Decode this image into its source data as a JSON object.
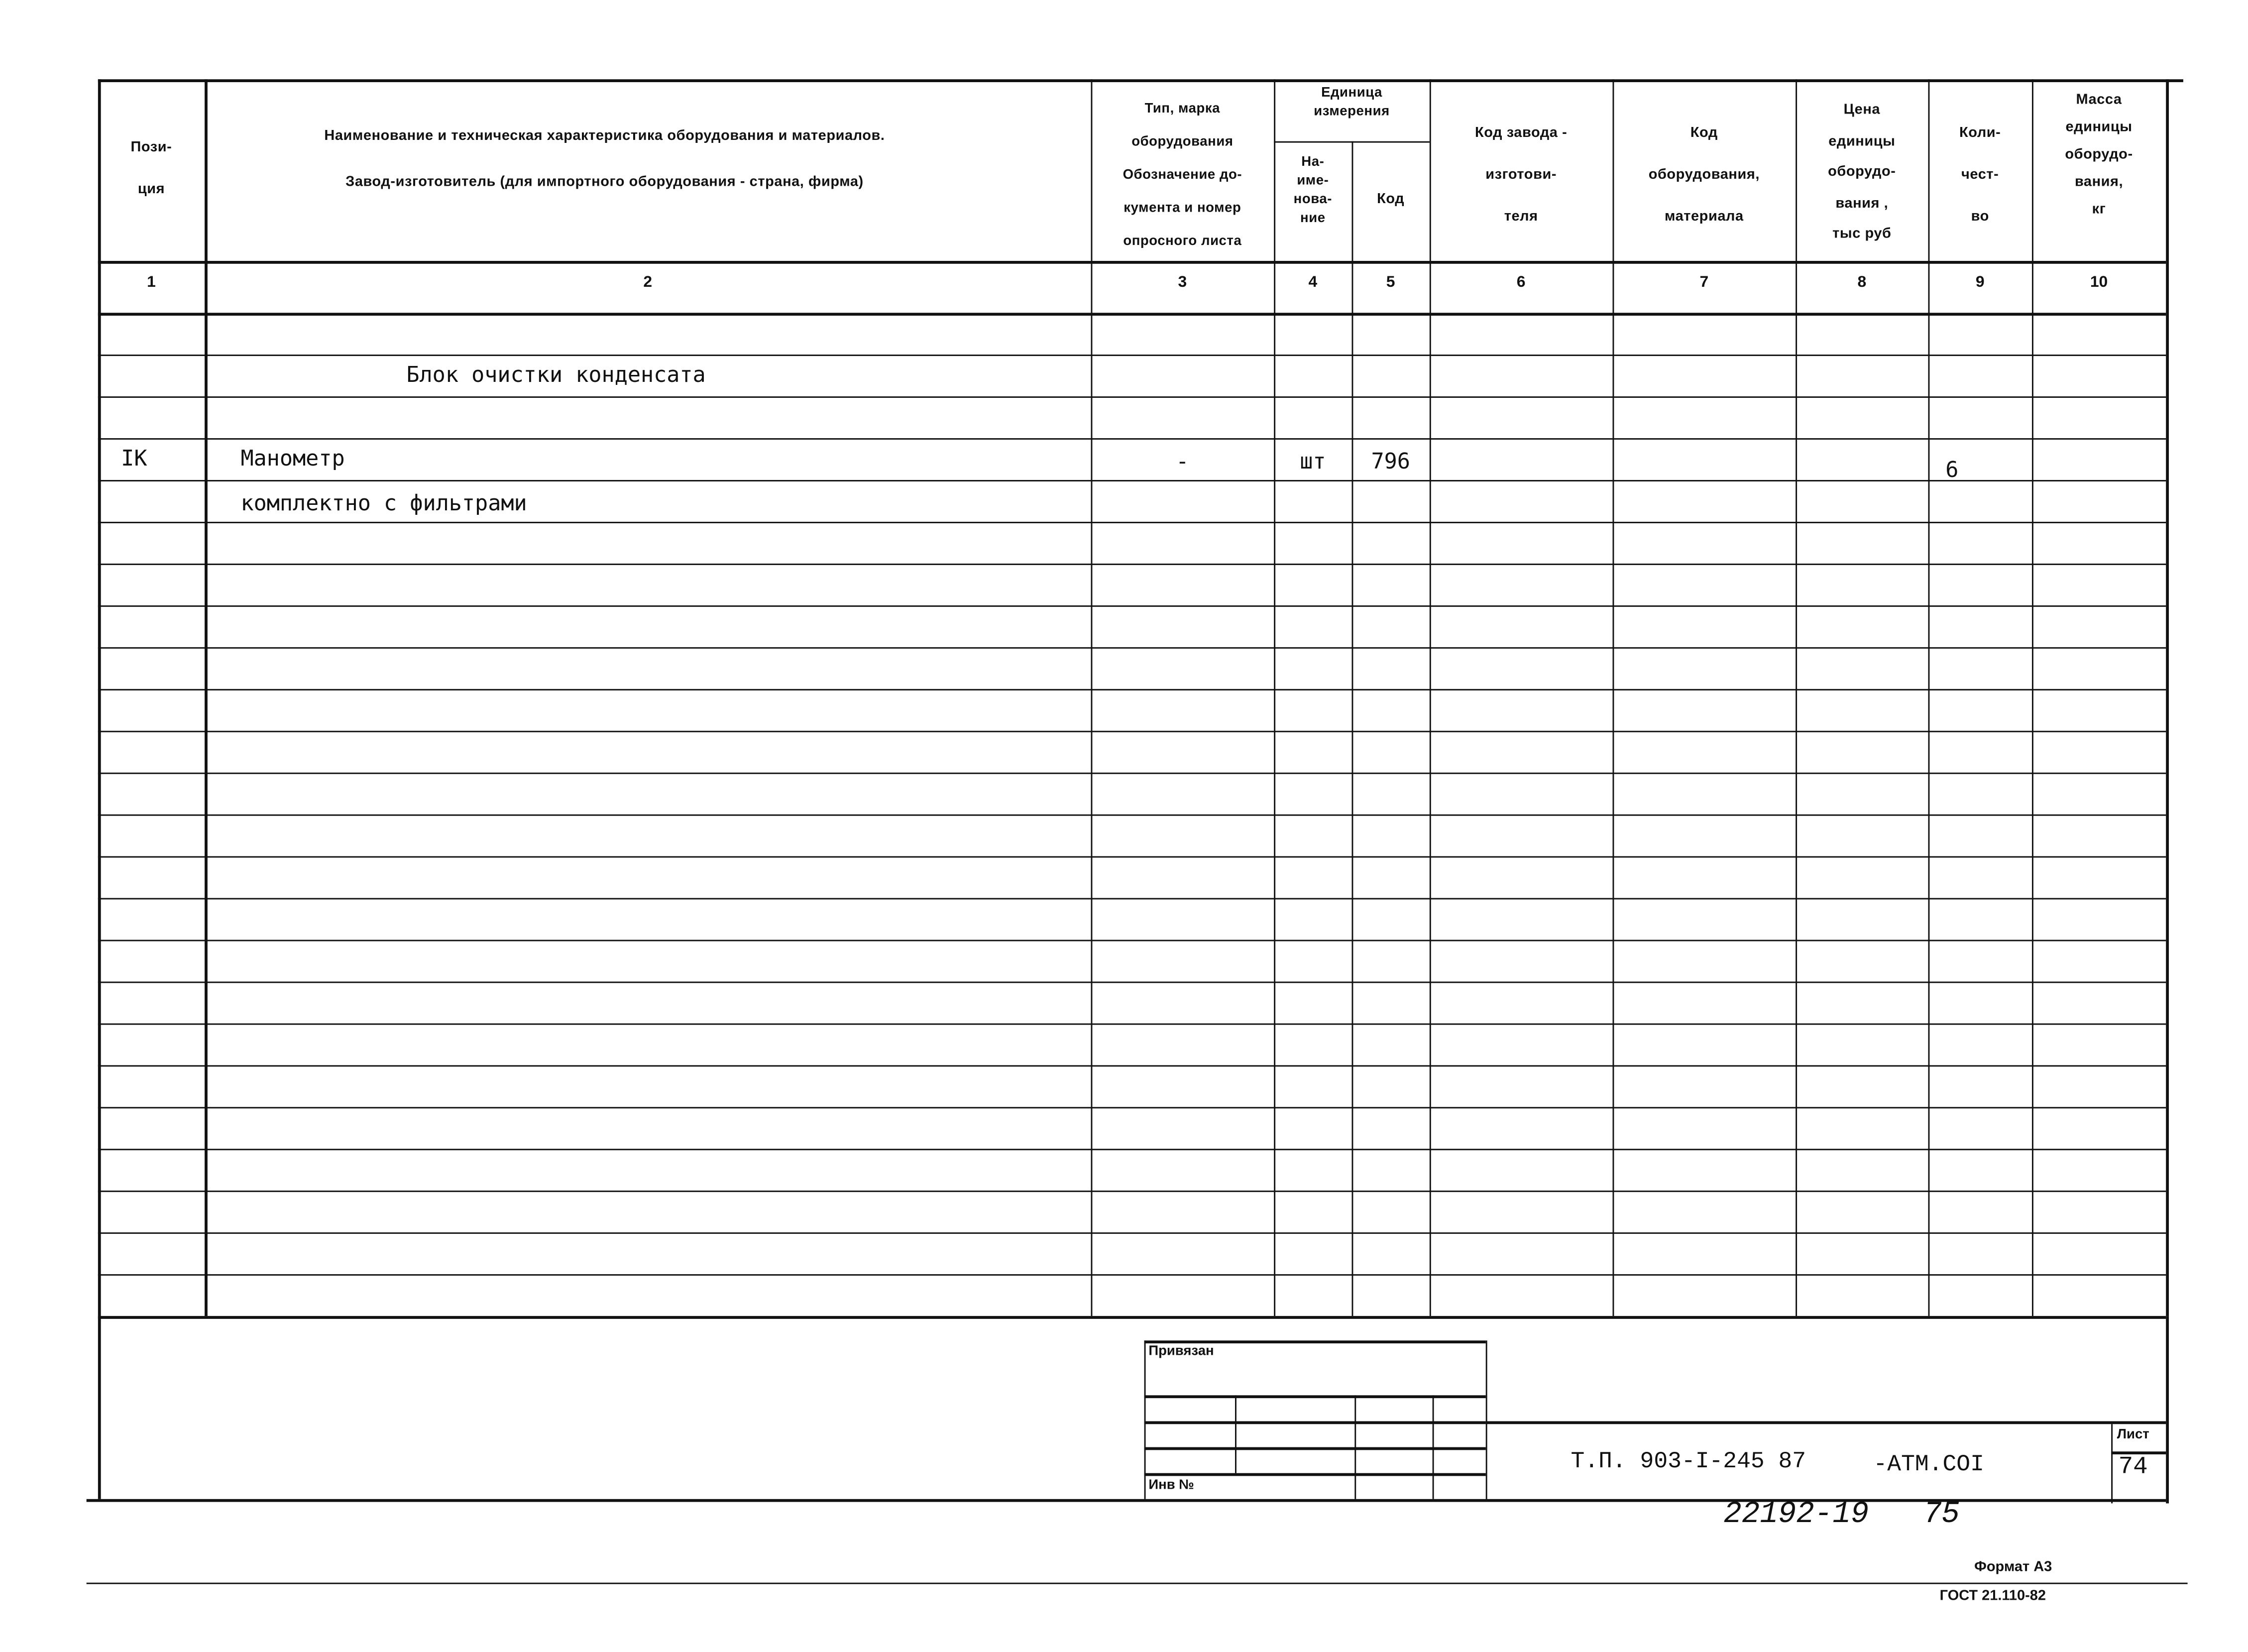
{
  "header": {
    "col1": "Пози-\nция",
    "col2_line1": "Наименование и техническая характеристика оборудования и материалов.",
    "col2_line2": "Завод-изготовитель (для импортного оборудования - страна, фирма)",
    "col3": "Тип, марка\nоборудования\nОбозначение до-\nкумента и номер\nопросного листа",
    "unit_group": "Единица\nизмерения",
    "col4": "На-\nиме-\nнова-\nние",
    "col5": "Код",
    "col6": "Код завода -\nизготови-\nтеля",
    "col7": "Код\nоборудования,\nматериала",
    "col8": "Цена\nединицы\nоборудо-\nвания ,\nтыс руб",
    "col9": "Коли-\nчест-\nво",
    "col10": "Масса\nединицы\nоборудо-\nвания,\nкг"
  },
  "column_numbers": [
    "1",
    "2",
    "3",
    "4",
    "5",
    "6",
    "7",
    "8",
    "9",
    "10"
  ],
  "table": {
    "rows": [
      {
        "row": 2,
        "name": "Блок очистки конденсата"
      },
      {
        "row": 4,
        "position": "IK",
        "name": "Манометр",
        "type": "-",
        "unit_name": "шт",
        "unit_code": "796",
        "quantity": "6"
      },
      {
        "row": 5,
        "name": "комплектно с фильтрами"
      }
    ]
  },
  "stamp": {
    "privyazan": "Привязан",
    "inv_no": "Инв №",
    "doc_code": "Т.П. 903-I-245 87",
    "doc_suffix": "-АТМ.СОI",
    "sheet_label": "Лист",
    "sheet_number": "74",
    "handwritten_number": "22192-19   75",
    "format": "Формат А3",
    "gost": "ГОСТ 21.110-82"
  }
}
